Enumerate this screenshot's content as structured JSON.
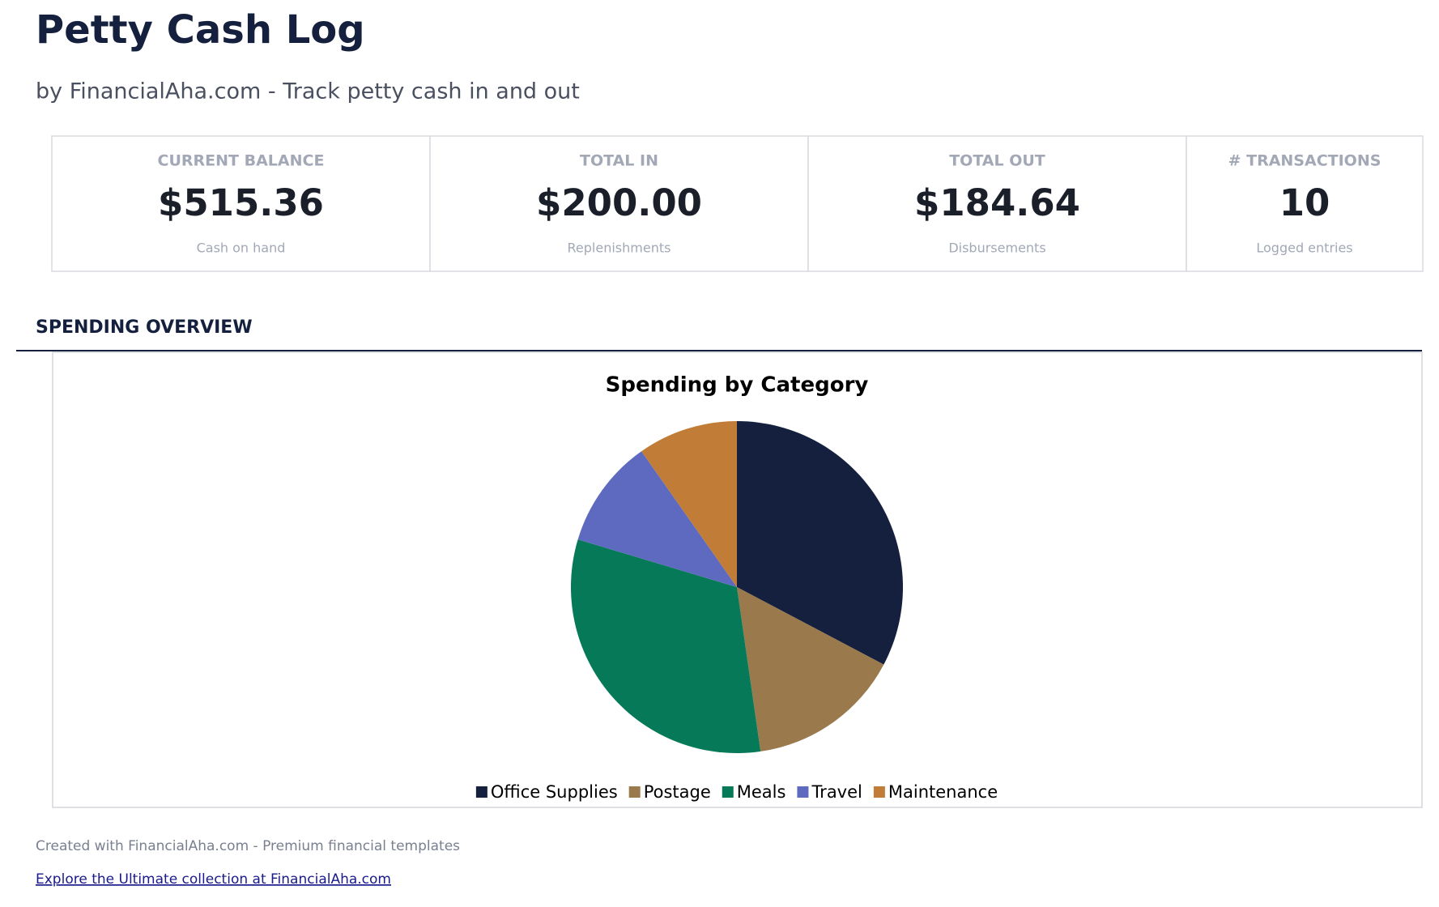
{
  "header": {
    "title": "Petty Cash Log",
    "subtitle": "by FinancialAha.com - Track petty cash in and out"
  },
  "kpis": [
    {
      "label": "CURRENT BALANCE",
      "value": "$515.36",
      "note": "Cash on hand"
    },
    {
      "label": "TOTAL IN",
      "value": "$200.00",
      "note": "Replenishments"
    },
    {
      "label": "TOTAL OUT",
      "value": "$184.64",
      "note": "Disbursements"
    },
    {
      "label": "# TRANSACTIONS",
      "value": "10",
      "note": "Logged entries"
    }
  ],
  "section": {
    "title": "SPENDING OVERVIEW"
  },
  "chart_data": {
    "type": "pie",
    "title": "Spending by Category",
    "categories": [
      "Office Supplies",
      "Postage",
      "Meals",
      "Travel",
      "Maintenance"
    ],
    "values": [
      60.4,
      27.7,
      58.9,
      19.6,
      18.0
    ],
    "colors": [
      "#14203d",
      "#9a7a4c",
      "#067a58",
      "#5e6abf",
      "#c17c38"
    ],
    "legend": "bottom"
  },
  "footer": {
    "text": "Created with FinancialAha.com - Premium financial templates",
    "link": "Explore the Ultimate collection at FinancialAha.com"
  }
}
